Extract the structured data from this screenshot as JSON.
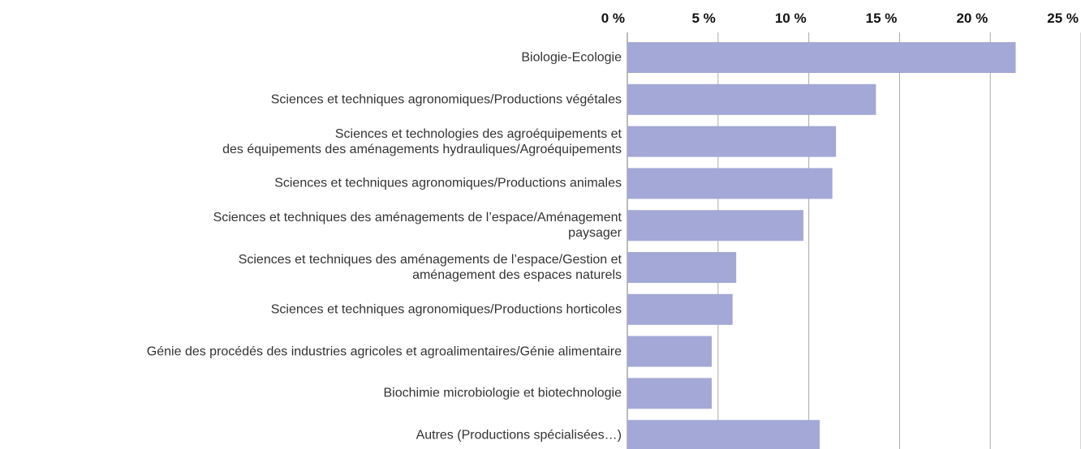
{
  "chart_data": {
    "type": "bar",
    "orientation": "horizontal",
    "categories": [
      "Biologie-Ecologie",
      "Sciences et techniques agronomiques/Productions végétales",
      "Sciences et technologies des agroéquipements et\ndes équipements des aménagements hydrauliques/Agroéquipements",
      "Sciences et techniques agronomiques/Productions animales",
      "Sciences et techniques des aménagements de l’espace/Aménagement\npaysager",
      "Sciences et techniques des aménagements de l’espace/Gestion et\naménagement des espaces naturels",
      "Sciences et techniques agronomiques/Productions horticoles",
      "Génie des procédés des industries agricoles et agroalimentaires/Génie alimentaire",
      "Biochimie microbiologie et biotechnologie",
      "Autres (Productions spécialisées…)"
    ],
    "values": [
      21.4,
      13.7,
      11.5,
      11.3,
      9.7,
      6.0,
      5.8,
      4.65,
      4.65,
      10.6
    ],
    "color": "#a3a8d6",
    "xlim": [
      0,
      25
    ],
    "xticks": [
      {
        "value": 0,
        "label": "0 %"
      },
      {
        "value": 5,
        "label": "5 %"
      },
      {
        "value": 10,
        "label": "10 %"
      },
      {
        "value": 15,
        "label": "15 %"
      },
      {
        "value": 20,
        "label": "20 %"
      },
      {
        "value": 25,
        "label": "25 %"
      }
    ],
    "grid": true
  }
}
